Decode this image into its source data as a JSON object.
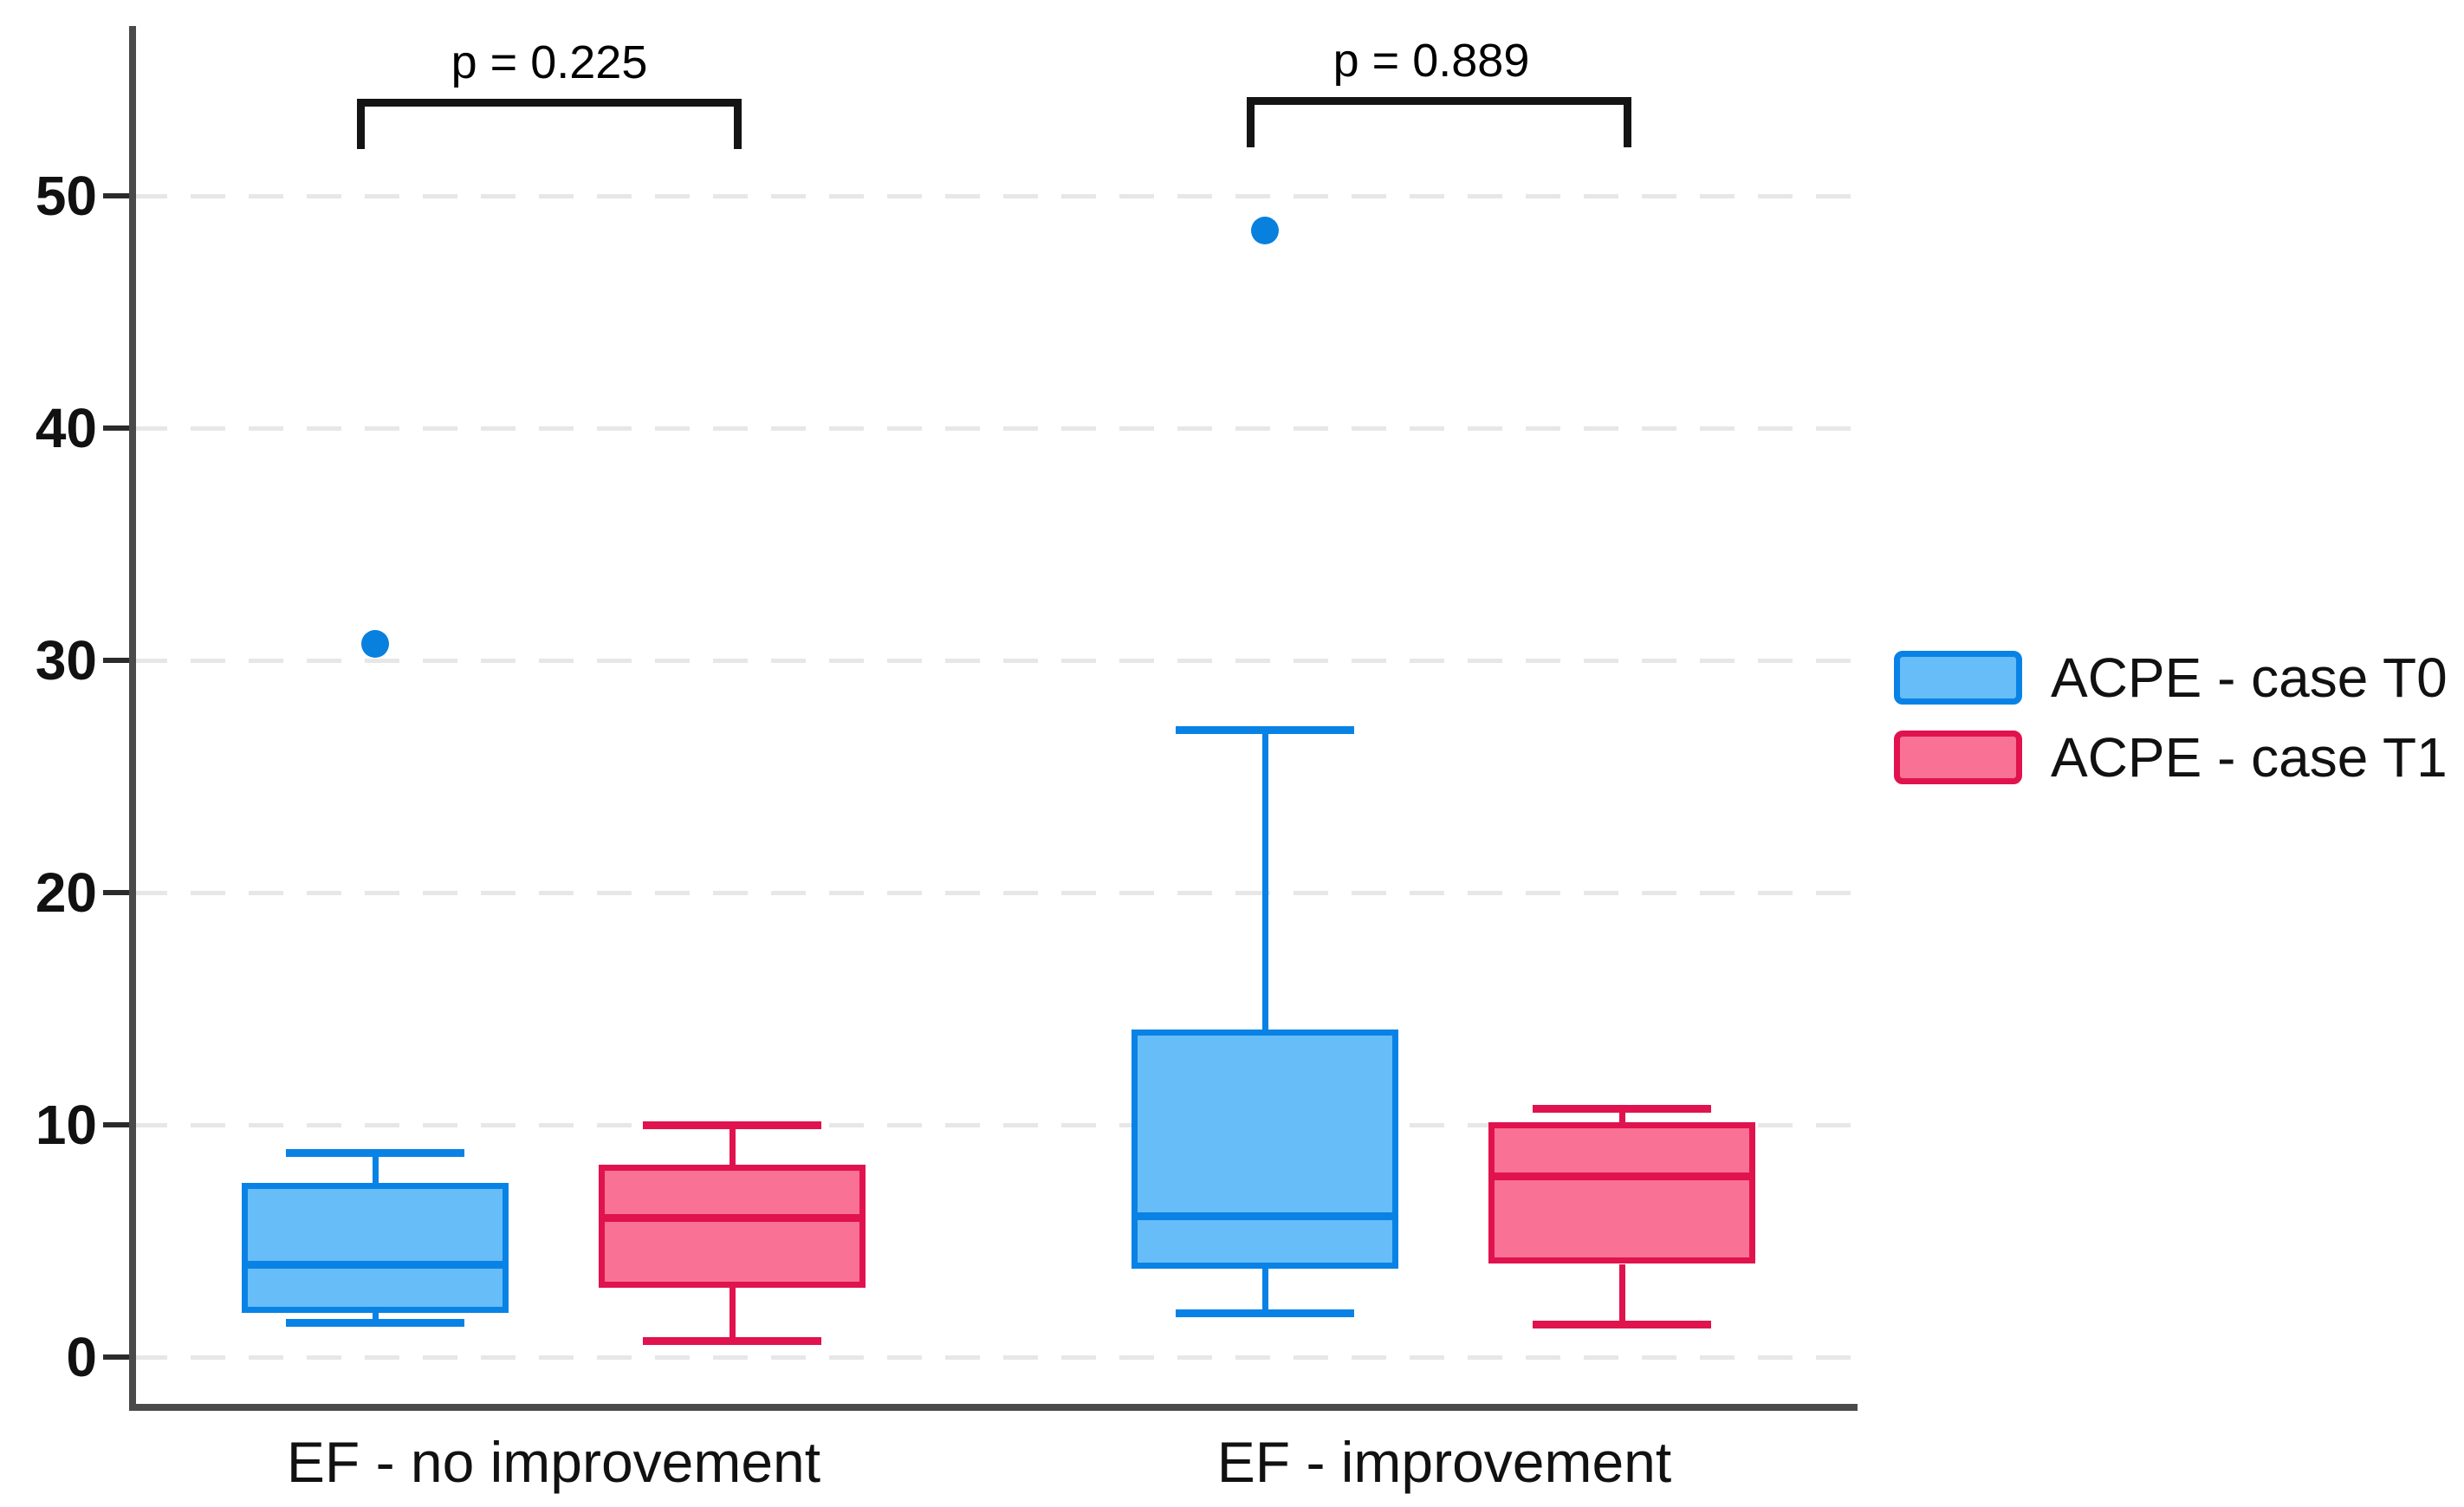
{
  "figure": {
    "background": "#ffffff"
  },
  "chart_data": {
    "type": "boxplot",
    "title": "",
    "xlabel": "",
    "ylabel": "",
    "categories": [
      "EF - no improvement",
      "EF - improvement"
    ],
    "yticks": [
      0,
      10,
      20,
      30,
      40,
      50
    ],
    "ylim": [
      0,
      57
    ],
    "grid": "horizontal-dashed",
    "legend_position": "right",
    "outlier_color": "#0880de",
    "series": [
      {
        "name": "ACPE - case T0",
        "fill": "#66bdf8",
        "border": "#0982e6",
        "boxes": [
          {
            "whisker_low": 1.5,
            "q1": 1.9,
            "median": 4.0,
            "q3": 7.5,
            "whisker_high": 8.8,
            "outliers": [
              30.7
            ]
          },
          {
            "whisker_low": 1.9,
            "q1": 3.8,
            "median": 6.1,
            "q3": 14.1,
            "whisker_high": 27.0,
            "outliers": [
              48.5
            ]
          }
        ]
      },
      {
        "name": "ACPE - case T1",
        "fill": "#f97295",
        "border": "#e0134e",
        "boxes": [
          {
            "whisker_low": 0.7,
            "q1": 3.0,
            "median": 6.0,
            "q3": 8.3,
            "whisker_high": 10.0,
            "outliers": []
          },
          {
            "whisker_low": 1.4,
            "q1": 4.0,
            "median": 7.8,
            "q3": 10.1,
            "whisker_high": 10.7,
            "outliers": []
          }
        ]
      }
    ],
    "p_values": [
      {
        "pair": "EF - no improvement",
        "text": "p = 0.225"
      },
      {
        "pair": "EF - improvement",
        "text": "p = 0.889"
      }
    ]
  }
}
